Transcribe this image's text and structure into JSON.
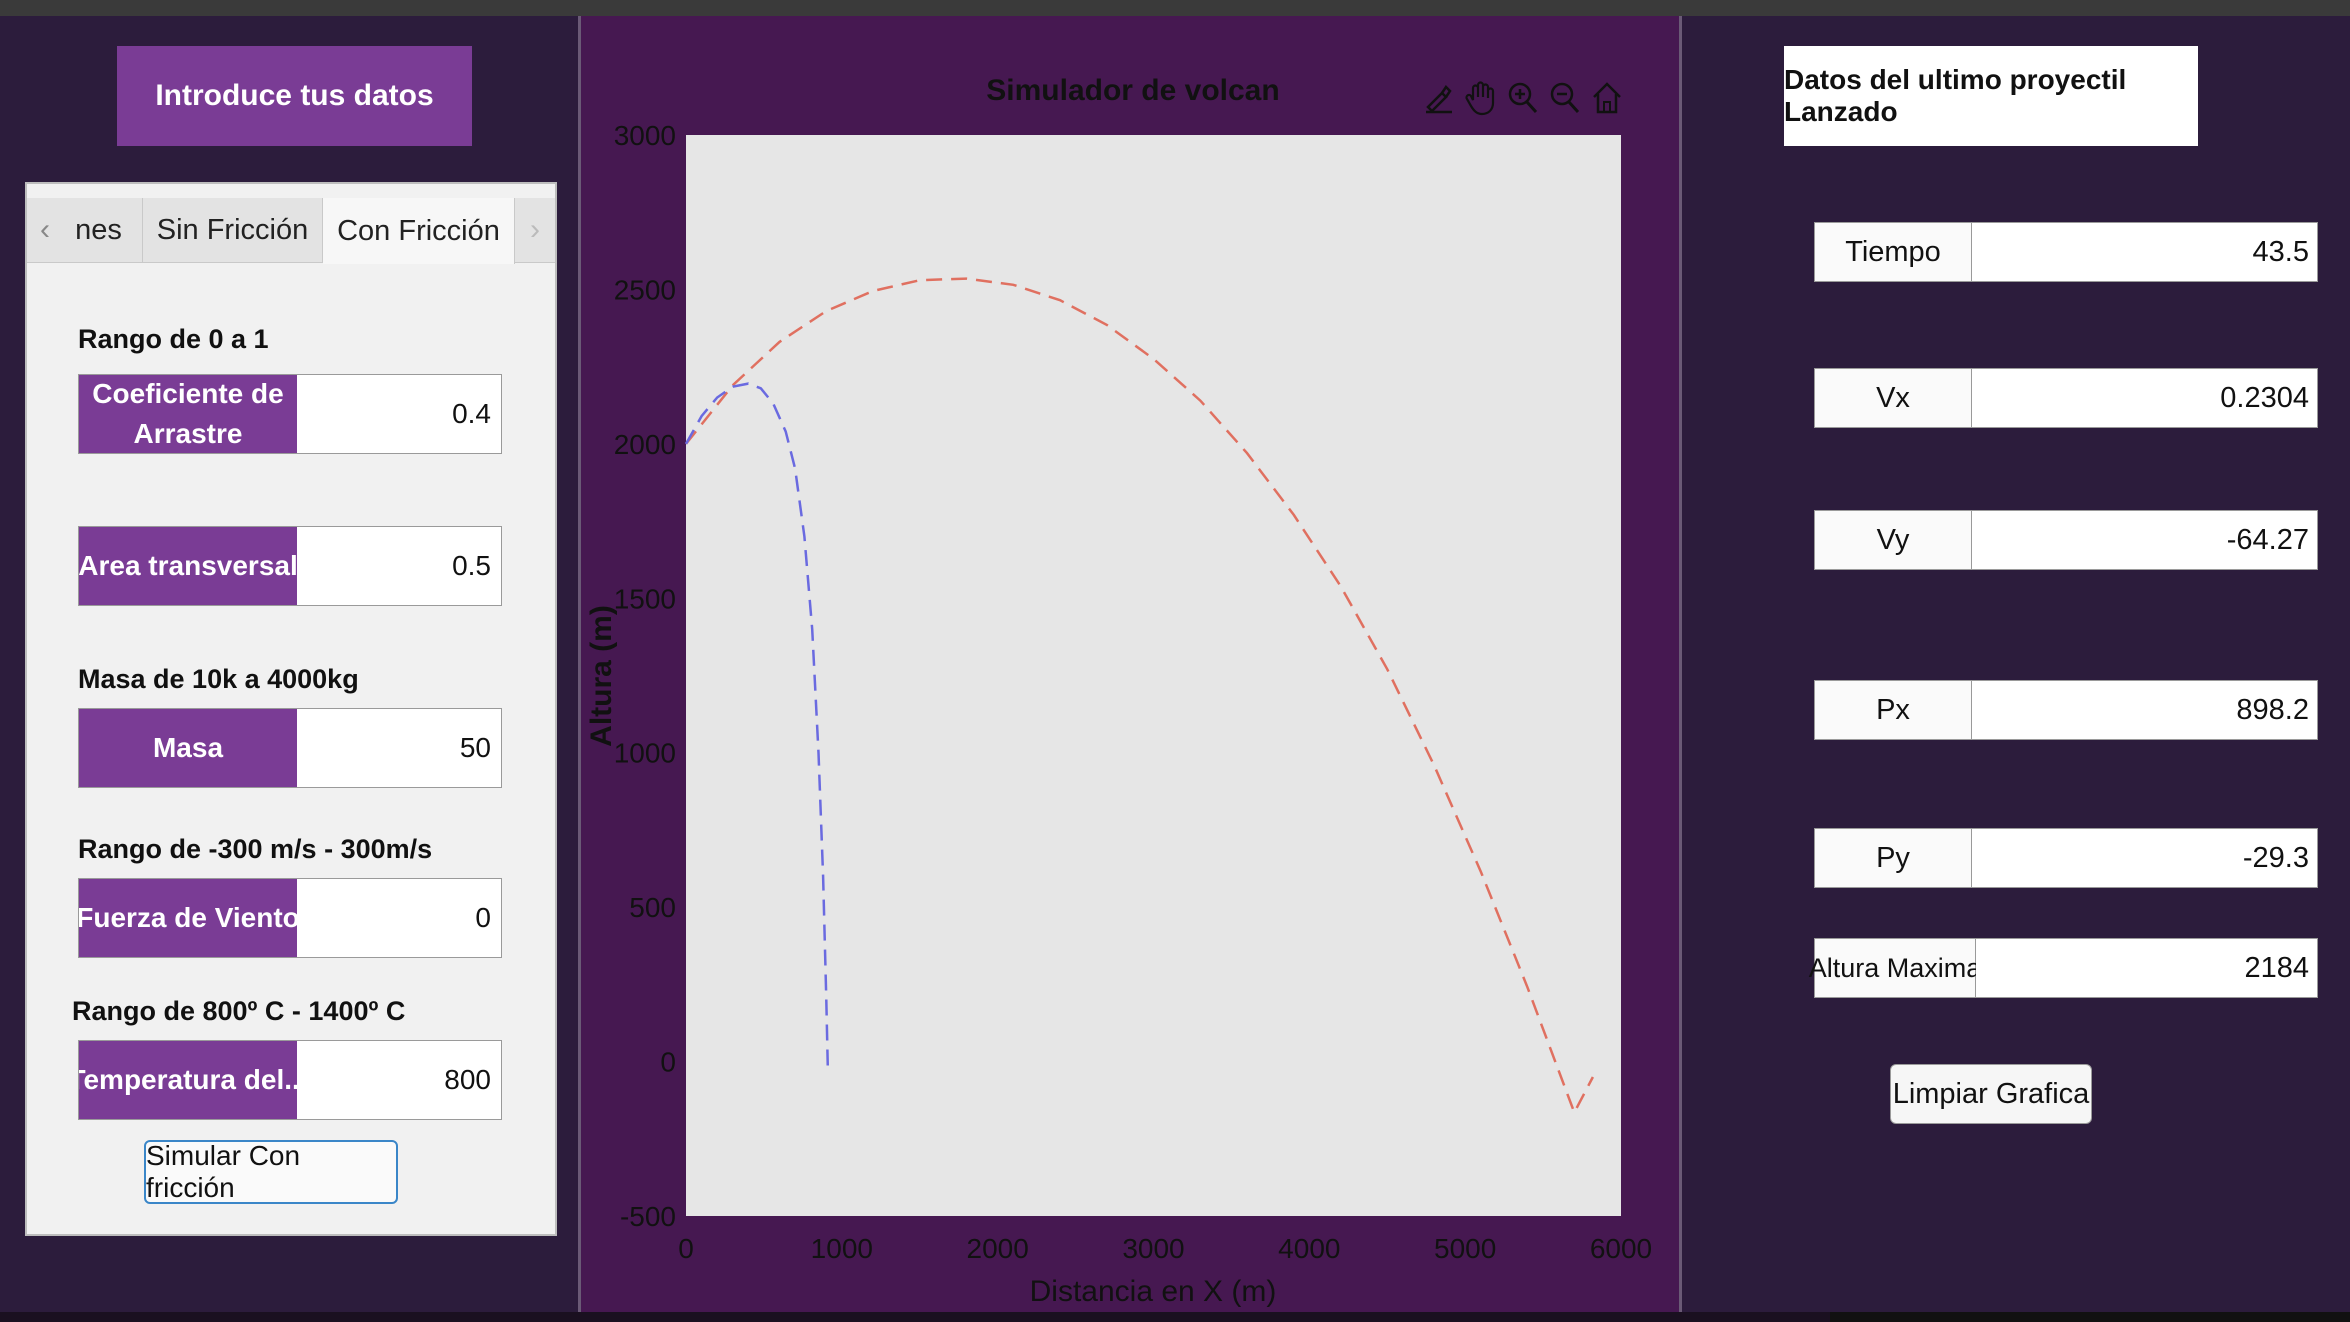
{
  "left_panel": {
    "title": "Introduce tus datos",
    "tabs": [
      "nes",
      "Sin Fricción",
      "Con Fricción"
    ],
    "active_tab": "Con Fricción",
    "sections": {
      "range_drag": "Rango de 0 a 1",
      "range_mass": "Masa de 10k a 4000kg",
      "range_wind": "Rango de -300 m/s - 300m/s",
      "range_temp": "Rango de 800º C - 1400º C"
    },
    "fields": {
      "drag_label_line1": "Coeficiente de",
      "drag_label_line2": "Arrastre",
      "drag_value": "0.4",
      "area_label": "Area transversal",
      "area_value": "0.5",
      "mass_label": "Masa",
      "mass_value": "50",
      "wind_label": "Fuerza de Viento",
      "wind_value": "0",
      "temp_label": "Temperatura del...",
      "temp_value": "800"
    },
    "simulate_button": "Simular Con fricción"
  },
  "chart_data": {
    "type": "line",
    "title": "Simulador de volcan",
    "xlabel": "Distancia en X (m)",
    "ylabel": "Altura (m)",
    "xlim": [
      0,
      6000
    ],
    "ylim": [
      -500,
      3000
    ],
    "xticks": [
      "0",
      "1000",
      "2000",
      "3000",
      "4000",
      "5000",
      "6000"
    ],
    "yticks": [
      "-500",
      "0",
      "500",
      "1000",
      "1500",
      "2000",
      "2500",
      "3000"
    ],
    "grid": false,
    "series": [
      {
        "color": "#e07060",
        "dash": true,
        "x": [
          0,
          300,
          600,
          900,
          1200,
          1500,
          1800,
          2100,
          2400,
          2700,
          3000,
          3300,
          3600,
          3900,
          4200,
          4500,
          4800,
          5100,
          5400,
          5700,
          5820
        ],
        "y": [
          2000,
          2190,
          2330,
          2430,
          2495,
          2530,
          2535,
          2515,
          2465,
          2385,
          2275,
          2140,
          1970,
          1770,
          1540,
          1270,
          960,
          615,
          240,
          -165,
          -50
        ]
      },
      {
        "color": "#6a6ae0",
        "dash": true,
        "x": [
          0,
          100,
          200,
          300,
          400,
          480,
          560,
          640,
          700,
          760,
          810,
          850,
          880,
          900,
          910
        ],
        "y": [
          2000,
          2090,
          2150,
          2185,
          2195,
          2180,
          2130,
          2040,
          1920,
          1700,
          1400,
          1000,
          600,
          200,
          -20
        ]
      }
    ]
  },
  "right_panel": {
    "title": "Datos del ultimo proyectil Lanzado",
    "rows": [
      {
        "label": "Tiempo",
        "value": "43.5"
      },
      {
        "label": "Vx",
        "value": "0.2304"
      },
      {
        "label": "Vy",
        "value": "-64.27"
      },
      {
        "label": "Px",
        "value": "898.2"
      },
      {
        "label": "Py",
        "value": "-29.3"
      },
      {
        "label": "Altura Maxima",
        "value": "2184"
      }
    ],
    "clear_button": "Limpiar Grafica"
  },
  "toolbar_icons": [
    "brush-icon",
    "pan-icon",
    "zoom-in-icon",
    "zoom-out-icon",
    "home-icon"
  ],
  "colors": {
    "purple": "#7a3c95",
    "plot_bg": "#461851",
    "axes_bg": "#e6e6e6"
  }
}
